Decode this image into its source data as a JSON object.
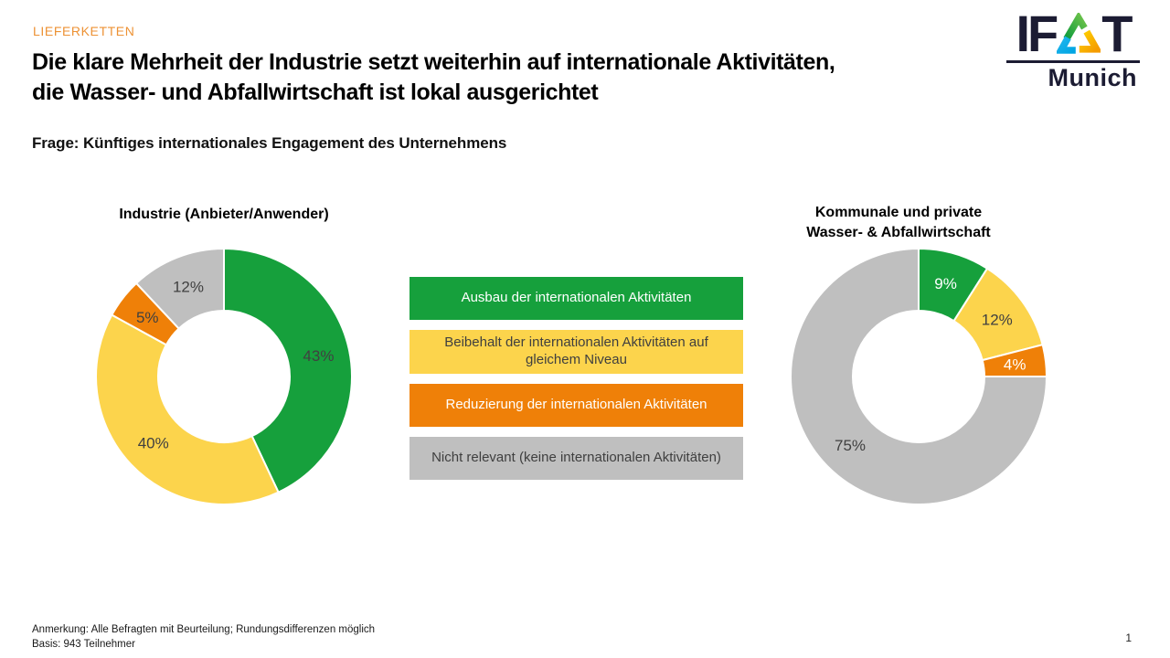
{
  "header": {
    "eyebrow": "LIEFERKETTEN",
    "title_line1": "Die klare Mehrheit der Industrie setzt weiterhin auf internationale Aktivitäten,",
    "title_line2": "die Wasser- und Abfallwirtschaft ist lokal ausgerichtet",
    "question": "Frage: Künftiges internationales Engagement des Unternehmens"
  },
  "logo": {
    "prefix": "IF",
    "suffix": "T",
    "city": "Munich"
  },
  "colors": {
    "accent_orange_eyebrow": "#ED9235",
    "green": "#16A03C",
    "yellow": "#FCD44C",
    "orange": "#EF8008",
    "gray": "#BFBFBF",
    "dark_text": "#3F3F3F",
    "logo_dark": "#1C1C33"
  },
  "legend": {
    "items": [
      {
        "label": "Ausbau der internationalen Aktivitäten",
        "color": "#16A03C",
        "text_color": "#FFFFFF"
      },
      {
        "label": "Beibehalt der internationalen Aktivitäten auf gleichem Niveau",
        "color": "#FCD44C",
        "text_color": "#3F3F3F"
      },
      {
        "label": "Reduzierung der internationalen Aktivitäten",
        "color": "#EF8008",
        "text_color": "#FFFFFF"
      },
      {
        "label": "Nicht relevant (keine internationalen Aktivitäten)",
        "color": "#BFBFBF",
        "text_color": "#3F3F3F"
      }
    ]
  },
  "chart_data": [
    {
      "type": "pie",
      "donut": true,
      "title": "Industrie (Anbieter/Anwender)",
      "start_angle": 0,
      "legend_position": "center-between-charts",
      "slices": [
        {
          "label": "Ausbau der internationalen Aktivitäten",
          "value": 43,
          "display": "43%",
          "color": "#16A03C",
          "label_color": "#404040"
        },
        {
          "label": "Beibehalt der internationalen Aktivitäten auf gleichem Niveau",
          "value": 40,
          "display": "40%",
          "color": "#FCD44C",
          "label_color": "#404040"
        },
        {
          "label": "Reduzierung der internationalen Aktivitäten",
          "value": 5,
          "display": "5%",
          "color": "#EF8008",
          "label_color": "#404040"
        },
        {
          "label": "Nicht relevant (keine internationalen Aktivitäten)",
          "value": 12,
          "display": "12%",
          "color": "#BFBFBF",
          "label_color": "#404040"
        }
      ]
    },
    {
      "type": "pie",
      "donut": true,
      "title": "Kommunale und private\nWasser- & Abfallwirtschaft",
      "start_angle": 0,
      "slices": [
        {
          "label": "Ausbau der internationalen Aktivitäten",
          "value": 9,
          "display": "9%",
          "color": "#16A03C",
          "label_color": "#FFFFFF"
        },
        {
          "label": "Beibehalt der internationalen Aktivitäten auf gleichem Niveau",
          "value": 12,
          "display": "12%",
          "color": "#FCD44C",
          "label_color": "#404040"
        },
        {
          "label": "Reduzierung der internationalen Aktivitäten",
          "value": 4,
          "display": "4%",
          "color": "#EF8008",
          "label_color": "#FFFFFF"
        },
        {
          "label": "Nicht relevant (keine internationalen Aktivitäten)",
          "value": 75,
          "display": "75%",
          "color": "#BFBFBF",
          "label_color": "#404040"
        }
      ]
    }
  ],
  "footer": {
    "note": "Anmerkung: Alle Befragten mit Beurteilung; Rundungsdifferenzen möglich",
    "basis": "Basis: 943 Teilnehmer",
    "page": "1"
  }
}
